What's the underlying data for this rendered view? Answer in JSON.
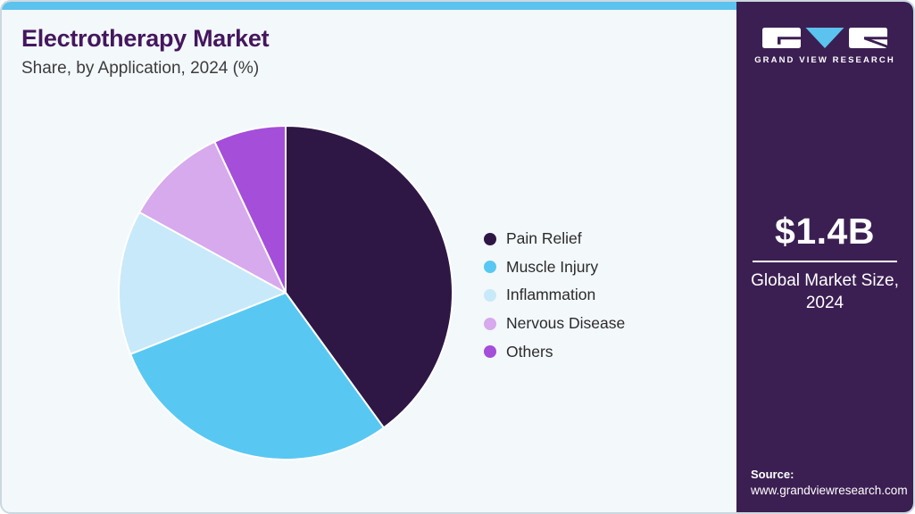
{
  "header": {
    "title": "Electrotherapy Market",
    "subtitle": "Share, by Application, 2024 (%)"
  },
  "chart_data": {
    "type": "pie",
    "title": "Electrotherapy Market Share, by Application, 2024 (%)",
    "unit": "%",
    "labels": [
      "Pain Relief",
      "Muscle Injury",
      "Inflammation",
      "Nervous Disease",
      "Others"
    ],
    "values": [
      40,
      29,
      14,
      10,
      7
    ],
    "colors": [
      "#2e1745",
      "#58c8f2",
      "#c8e9f9",
      "#d7a9ed",
      "#a44ed9"
    ],
    "start_angle_deg": -90,
    "direction": "clockwise",
    "legend_position": "right",
    "slice_border_color": "#ffffff"
  },
  "sidebar": {
    "logo_text": "GRAND VIEW RESEARCH",
    "market_size": {
      "value": "$1.4B",
      "label_line1": "Global Market Size,",
      "label_line2": "2024"
    },
    "source": {
      "label": "Source:",
      "url": "www.grandviewresearch.com"
    }
  },
  "theme": {
    "topbar_color": "#5cc2ee",
    "sidebar_bg": "#3b1f52",
    "card_bg": "#f3f8fb",
    "title_color": "#44175e",
    "logo_triangle_color": "#5bc3ee"
  }
}
